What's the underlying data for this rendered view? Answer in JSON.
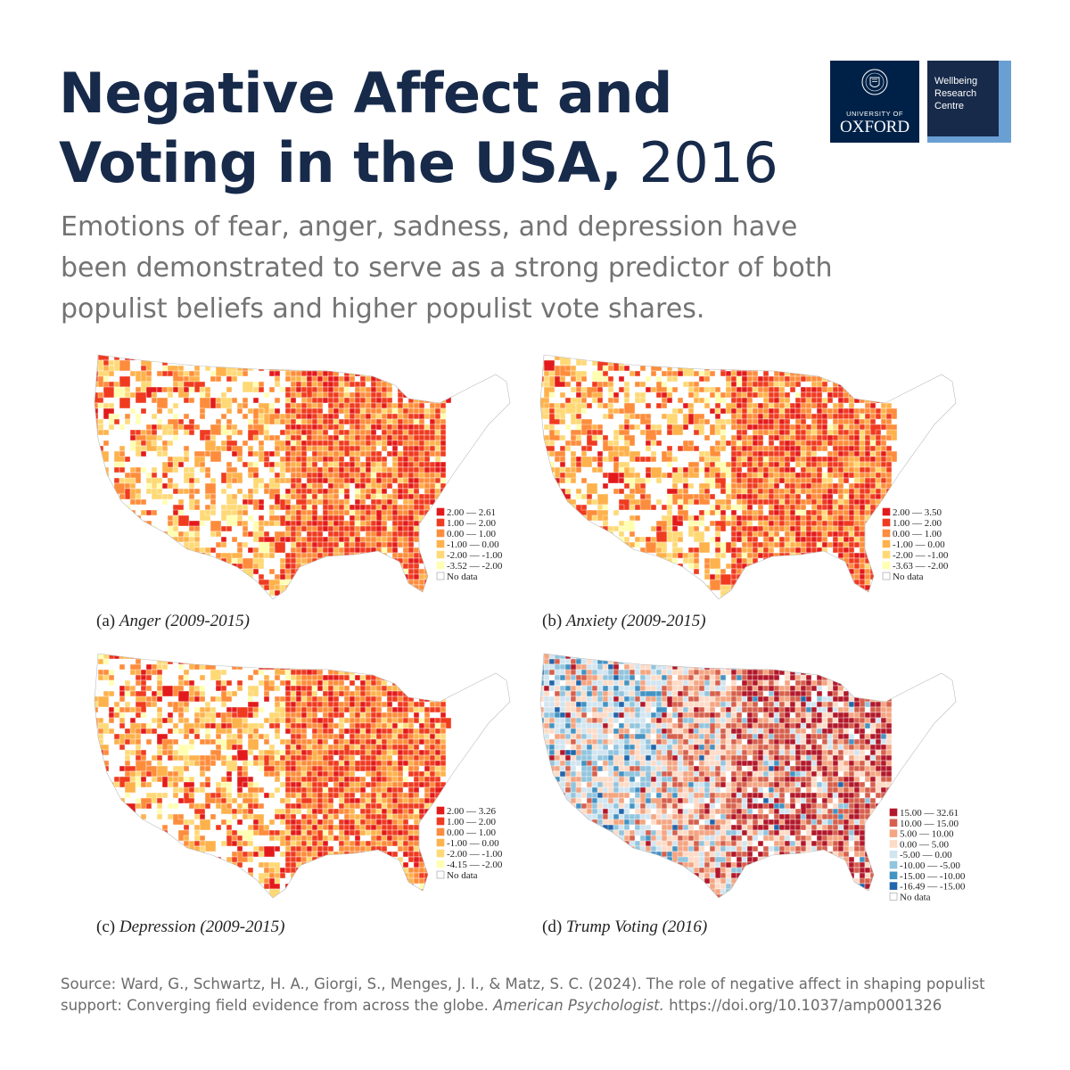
{
  "header": {
    "title_line1": "Negative Affect and",
    "title_line2_bold": "Voting in the USA,",
    "title_line2_year": " 2016",
    "subtitle": "Emotions of fear, anger, sadness, and depression have been demonstrated to serve as a strong predictor of both populist beliefs and higher populist vote shares."
  },
  "logos": {
    "oxford_university": "UNIVERSITY OF",
    "oxford_name": "OXFORD",
    "wellbeing_line1": "Wellbeing",
    "wellbeing_line2": "Research",
    "wellbeing_line3": "Centre"
  },
  "maps": [
    {
      "label": "(a)",
      "caption": "Anger (2009-2015)",
      "legend": [
        "2.00 — 2.61",
        "1.00 — 2.00",
        "0.00 — 1.00",
        "-1.00 — 0.00",
        "-2.00 — -1.00",
        "-3.52 — -2.00",
        "No data"
      ],
      "colors": [
        "#e31a1c",
        "#f03b20",
        "#fd8d3c",
        "#feb24c",
        "#fed976",
        "#ffffb2",
        "#ffffff"
      ]
    },
    {
      "label": "(b)",
      "caption": "Anxiety (2009-2015)",
      "legend": [
        "2.00 — 3.50",
        "1.00 — 2.00",
        "0.00 — 1.00",
        "-1.00 — 0.00",
        "-2.00 — -1.00",
        "-3.63 — -2.00",
        "No data"
      ],
      "colors": [
        "#e31a1c",
        "#f03b20",
        "#fd8d3c",
        "#feb24c",
        "#fed976",
        "#ffffb2",
        "#ffffff"
      ]
    },
    {
      "label": "(c)",
      "caption": "Depression (2009-2015)",
      "legend": [
        "2.00 — 3.26",
        "1.00 — 2.00",
        "0.00 — 1.00",
        "-1.00 — 0.00",
        "-2.00 — -1.00",
        "-4.15 — -2.00",
        "No data"
      ],
      "colors": [
        "#e31a1c",
        "#f03b20",
        "#fd8d3c",
        "#feb24c",
        "#fed976",
        "#ffffb2",
        "#ffffff"
      ]
    },
    {
      "label": "(d)",
      "caption": "Trump Voting (2016)",
      "legend": [
        "15.00 — 32.61",
        "10.00 — 15.00",
        "5.00 — 10.00",
        "0.00 — 5.00",
        "-5.00 — 0.00",
        "-10.00 — -5.00",
        "-15.00 — -10.00",
        "-16.49 — -15.00",
        "No data"
      ],
      "colors": [
        "#b2182b",
        "#d6604d",
        "#f4a582",
        "#fddbc7",
        "#d1e5f0",
        "#92c5de",
        "#4393c3",
        "#2166ac",
        "#ffffff"
      ]
    }
  ],
  "source": {
    "prefix": "Source: Ward, G., Schwartz, H. A., Giorgi, S., Menges, J. I., & Matz, S. C. (2024). The role of negative affect in shaping populist support: Converging field evidence from across the globe. ",
    "journal": "American Psychologist.",
    "doi": " https://doi.org/10.1037/amp0001326"
  }
}
